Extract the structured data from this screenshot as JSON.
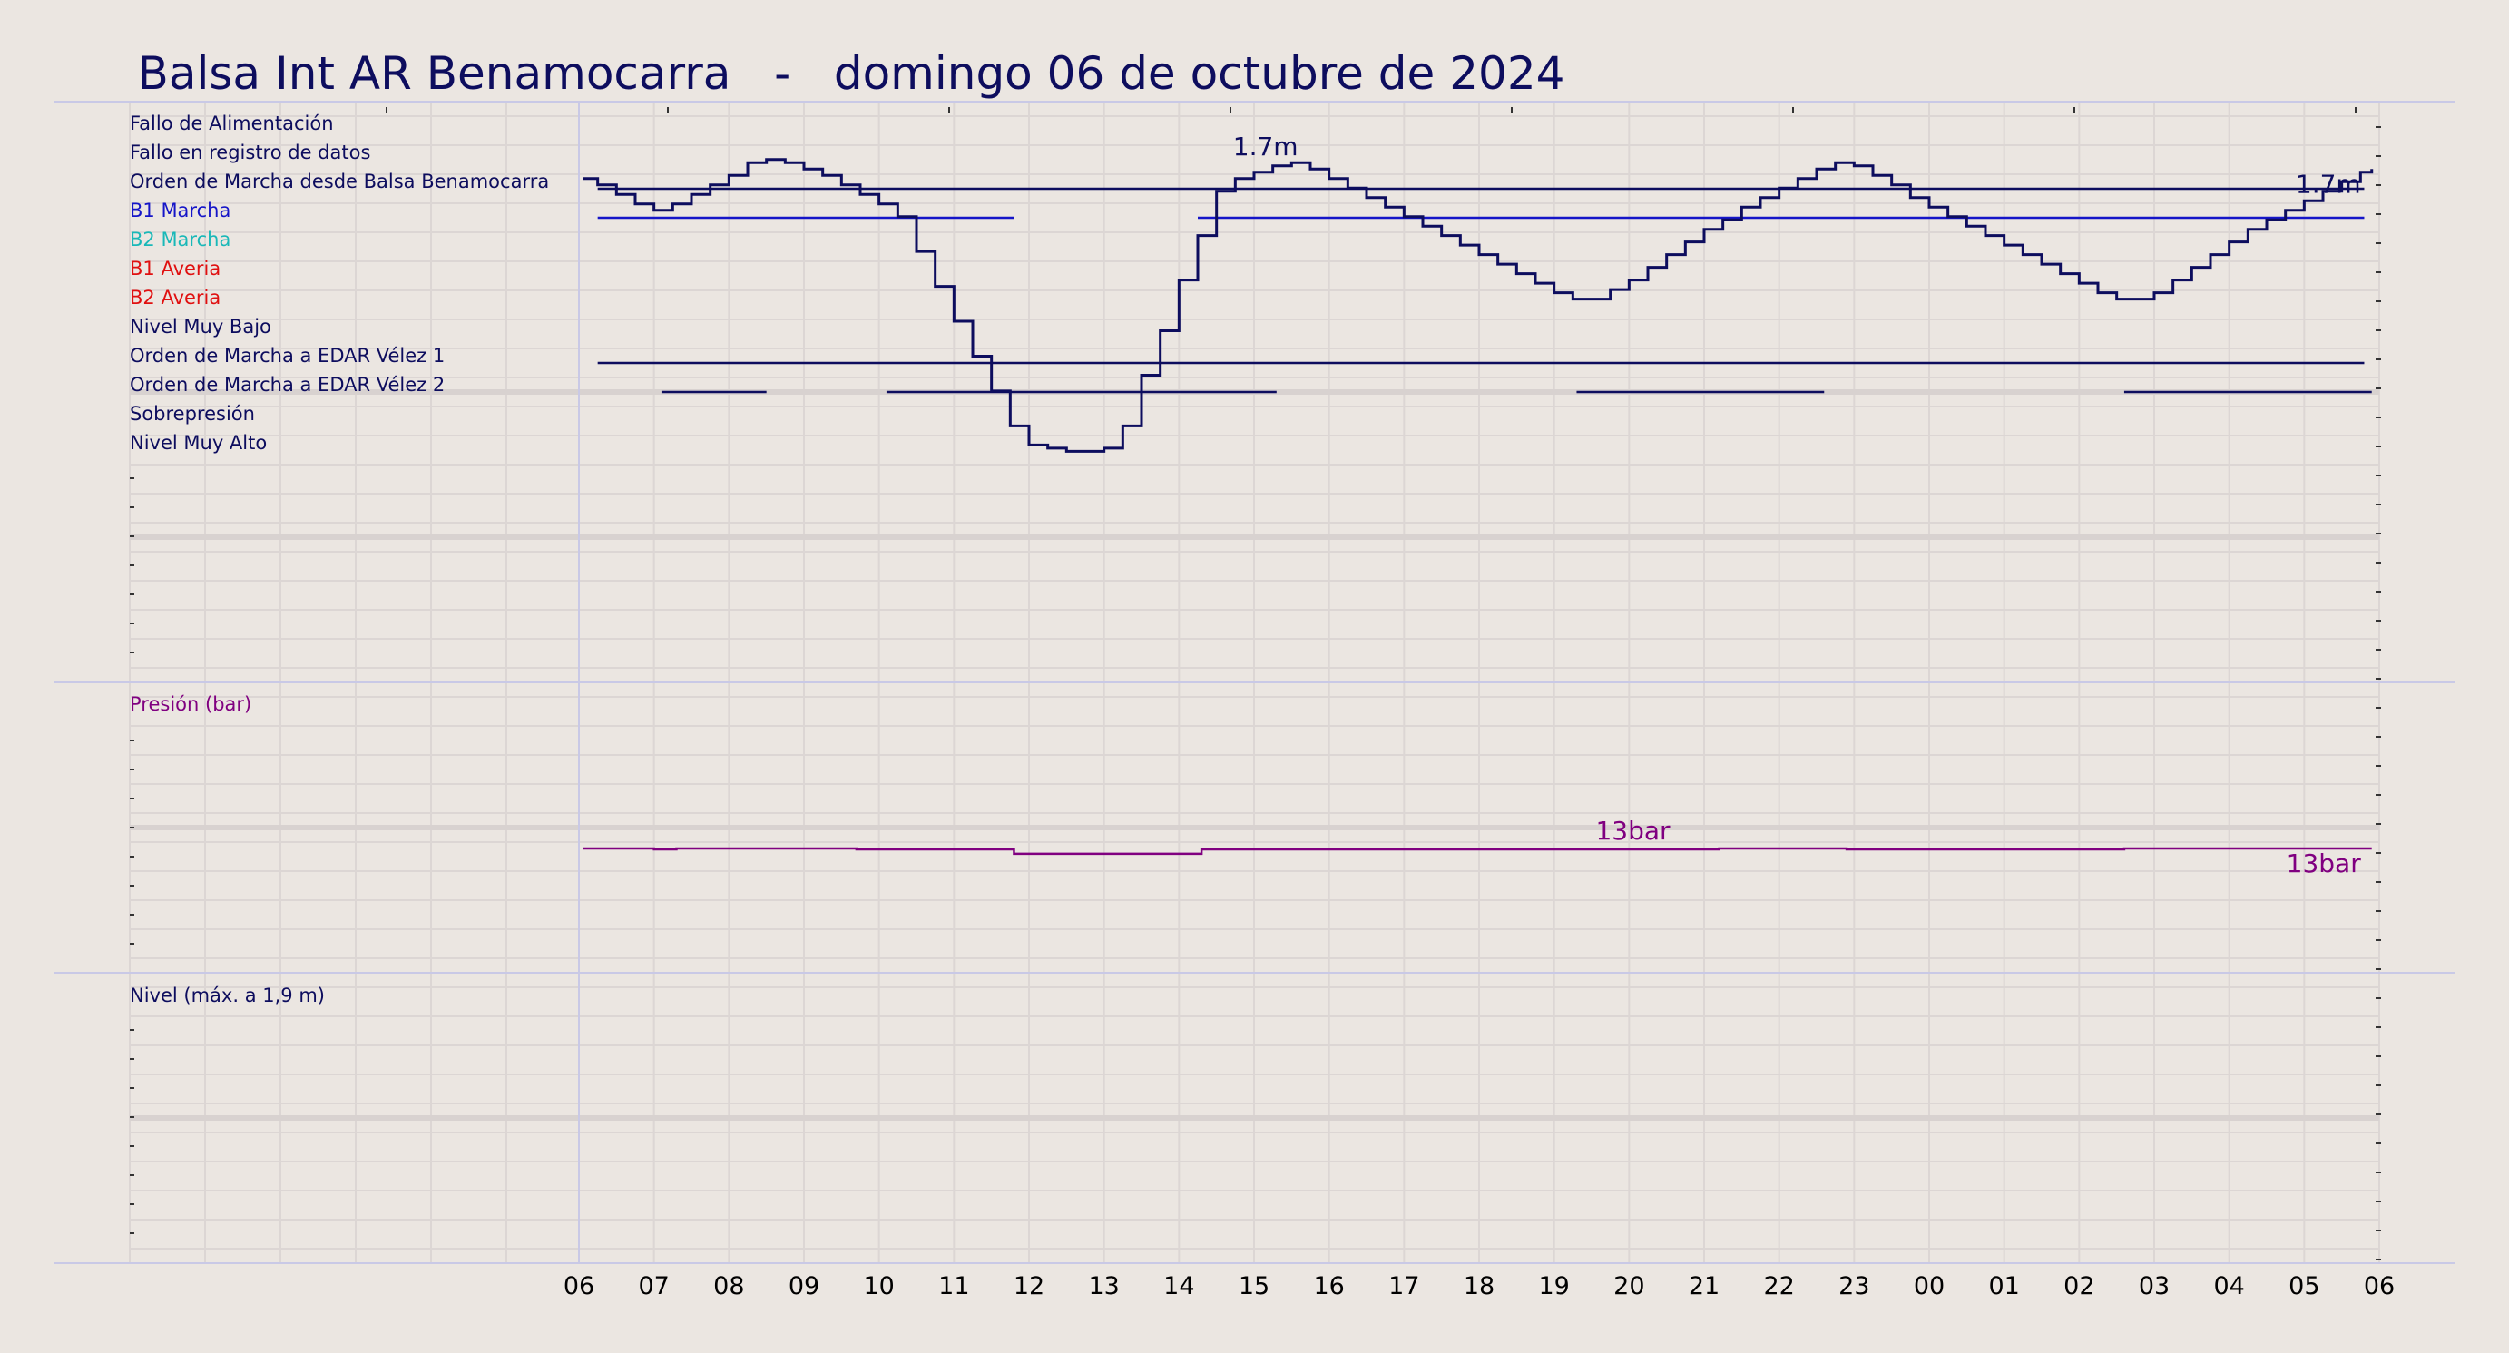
{
  "chart_data": {
    "type": "line",
    "title": "Balsa Int AR Benamocarra   -   domingo 06 de octubre de 2024",
    "x_ticks": [
      "06",
      "07",
      "08",
      "09",
      "10",
      "11",
      "12",
      "13",
      "14",
      "15",
      "16",
      "17",
      "18",
      "19",
      "20",
      "21",
      "22",
      "23",
      "00",
      "01",
      "02",
      "03",
      "04",
      "05",
      "06"
    ],
    "x_range_hours": [
      0,
      24
    ],
    "grid": true,
    "colors": {
      "navy": "#0d0d5e",
      "blue": "#1515c8",
      "cyan": "#19b8b8",
      "red": "#e01010",
      "purple": "#800080"
    },
    "digital_panel": {
      "signals": [
        {
          "label": "Fallo de Alimentación",
          "color": "#0d0d5e",
          "on_intervals": []
        },
        {
          "label": "Fallo en registro de datos",
          "color": "#0d0d5e",
          "on_intervals": []
        },
        {
          "label": "Orden de Marcha desde Balsa Benamocarra",
          "color": "#0d0d5e",
          "on_intervals": [
            [
              0.25,
              23.8
            ]
          ]
        },
        {
          "label": "B1 Marcha",
          "color": "#1515c8",
          "on_intervals": [
            [
              0.25,
              5.8
            ],
            [
              8.25,
              23.8
            ]
          ]
        },
        {
          "label": "B2 Marcha",
          "color": "#19b8b8",
          "on_intervals": []
        },
        {
          "label": "B1 Averia",
          "color": "#e01010",
          "on_intervals": []
        },
        {
          "label": "B2 Averia",
          "color": "#e01010",
          "on_intervals": []
        },
        {
          "label": "Nivel Muy Bajo",
          "color": "#0d0d5e",
          "on_intervals": []
        },
        {
          "label": "Orden de Marcha a EDAR Vélez 1",
          "color": "#0d0d5e",
          "on_intervals": [
            [
              0.25,
              23.8
            ]
          ]
        },
        {
          "label": "Orden de Marcha a EDAR Vélez 2",
          "color": "#0d0d5e",
          "on_intervals": [
            [
              1.1,
              2.5
            ],
            [
              4.1,
              9.3
            ],
            [
              13.3,
              16.6
            ],
            [
              20.6,
              23.9
            ]
          ]
        },
        {
          "label": "Sobrepresión",
          "color": "#0d0d5e",
          "on_intervals": []
        },
        {
          "label": "Nivel Muy Alto",
          "color": "#0d0d5e",
          "on_intervals": []
        }
      ]
    },
    "pressure_panel": {
      "label": "Presión (bar)",
      "unit": "bar",
      "color": "#800080",
      "y_range": [
        0,
        30
      ],
      "series": [
        [
          0.05,
          13.0
        ],
        [
          1.0,
          12.9
        ],
        [
          1.3,
          13.0
        ],
        [
          3.7,
          12.9
        ],
        [
          5.8,
          12.4
        ],
        [
          8.3,
          12.9
        ],
        [
          14.8,
          12.9
        ],
        [
          15.2,
          13.0
        ],
        [
          16.6,
          13.0
        ],
        [
          16.9,
          12.9
        ],
        [
          19.0,
          12.9
        ],
        [
          20.6,
          13.0
        ],
        [
          23.9,
          13.0
        ]
      ],
      "annotations": [
        {
          "text": "13bar",
          "x": 15.2,
          "y": 13.0
        },
        {
          "text": "13bar",
          "x": 23.9,
          "y": 13.0
        }
      ]
    },
    "level_panel": {
      "label": "Nivel (máx. a 1,9 m)",
      "unit": "m",
      "color": "#0d0d5e",
      "y_range": [
        0,
        1.9
      ],
      "series": [
        [
          0.05,
          1.69
        ],
        [
          0.25,
          1.68
        ],
        [
          0.5,
          1.665
        ],
        [
          0.75,
          1.65
        ],
        [
          1.0,
          1.64
        ],
        [
          1.25,
          1.65
        ],
        [
          1.5,
          1.665
        ],
        [
          1.75,
          1.68
        ],
        [
          2.0,
          1.695
        ],
        [
          2.25,
          1.715
        ],
        [
          2.5,
          1.72
        ],
        [
          2.75,
          1.715
        ],
        [
          3.0,
          1.705
        ],
        [
          3.25,
          1.695
        ],
        [
          3.5,
          1.68
        ],
        [
          3.75,
          1.665
        ],
        [
          4.0,
          1.65
        ],
        [
          4.25,
          1.63
        ],
        [
          4.5,
          1.575
        ],
        [
          4.75,
          1.52
        ],
        [
          5.0,
          1.465
        ],
        [
          5.25,
          1.41
        ],
        [
          5.5,
          1.355
        ],
        [
          5.75,
          1.3
        ],
        [
          6.0,
          1.27
        ],
        [
          6.25,
          1.265
        ],
        [
          6.5,
          1.26
        ],
        [
          7.0,
          1.265
        ],
        [
          7.25,
          1.3
        ],
        [
          7.5,
          1.38
        ],
        [
          7.75,
          1.45
        ],
        [
          8.0,
          1.53
        ],
        [
          8.25,
          1.6
        ],
        [
          8.5,
          1.67
        ],
        [
          8.75,
          1.69
        ],
        [
          9.0,
          1.7
        ],
        [
          9.25,
          1.71
        ],
        [
          9.5,
          1.715
        ],
        [
          9.75,
          1.705
        ],
        [
          10.0,
          1.69
        ],
        [
          10.25,
          1.675
        ],
        [
          10.5,
          1.66
        ],
        [
          10.75,
          1.645
        ],
        [
          11.0,
          1.63
        ],
        [
          11.25,
          1.615
        ],
        [
          11.5,
          1.6
        ],
        [
          11.75,
          1.585
        ],
        [
          12.0,
          1.57
        ],
        [
          12.25,
          1.555
        ],
        [
          12.5,
          1.54
        ],
        [
          12.75,
          1.525
        ],
        [
          13.0,
          1.51
        ],
        [
          13.25,
          1.5
        ],
        [
          13.5,
          1.5
        ],
        [
          13.75,
          1.515
        ],
        [
          14.0,
          1.53
        ],
        [
          14.25,
          1.55
        ],
        [
          14.5,
          1.57
        ],
        [
          14.75,
          1.59
        ],
        [
          15.0,
          1.61
        ],
        [
          15.25,
          1.625
        ],
        [
          15.5,
          1.645
        ],
        [
          15.75,
          1.66
        ],
        [
          16.0,
          1.675
        ],
        [
          16.25,
          1.69
        ],
        [
          16.5,
          1.705
        ],
        [
          16.75,
          1.715
        ],
        [
          17.0,
          1.71
        ],
        [
          17.25,
          1.695
        ],
        [
          17.5,
          1.68
        ],
        [
          17.75,
          1.66
        ],
        [
          18.0,
          1.645
        ],
        [
          18.25,
          1.63
        ],
        [
          18.5,
          1.615
        ],
        [
          18.75,
          1.6
        ],
        [
          19.0,
          1.585
        ],
        [
          19.25,
          1.57
        ],
        [
          19.5,
          1.555
        ],
        [
          19.75,
          1.54
        ],
        [
          20.0,
          1.525
        ],
        [
          20.25,
          1.51
        ],
        [
          20.5,
          1.5
        ],
        [
          20.75,
          1.5
        ],
        [
          21.0,
          1.51
        ],
        [
          21.25,
          1.53
        ],
        [
          21.5,
          1.55
        ],
        [
          21.75,
          1.57
        ],
        [
          22.0,
          1.59
        ],
        [
          22.25,
          1.61
        ],
        [
          22.5,
          1.625
        ],
        [
          22.75,
          1.64
        ],
        [
          23.0,
          1.655
        ],
        [
          23.25,
          1.67
        ],
        [
          23.5,
          1.685
        ],
        [
          23.75,
          1.7
        ],
        [
          23.9,
          1.705
        ]
      ],
      "annotations": [
        {
          "text": "1.7m",
          "x": 9.25,
          "y": 1.71
        },
        {
          "text": "1.7m",
          "x": 23.9,
          "y": 1.705
        }
      ]
    }
  }
}
